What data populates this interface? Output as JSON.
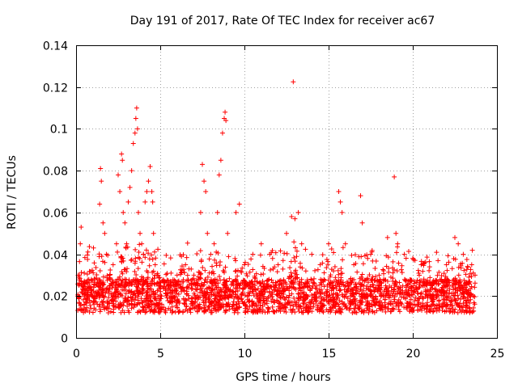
{
  "chart_data": {
    "type": "scatter",
    "title": "Day 191 of 2017, Rate Of TEC Index for receiver ac67",
    "xlabel": "GPS time / hours",
    "ylabel": "ROTI / TECUs",
    "xlim": [
      0,
      25
    ],
    "ylim": [
      0,
      0.14
    ],
    "xticks": [
      0,
      5,
      10,
      15,
      20,
      25
    ],
    "xtick_labels": [
      "0",
      "5",
      "10",
      "15",
      "20",
      "25"
    ],
    "yticks": [
      0,
      0.02,
      0.04,
      0.06,
      0.08,
      0.1,
      0.12,
      0.14
    ],
    "ytick_labels": [
      "0",
      "0.02",
      "0.04",
      "0.06",
      "0.08",
      "0.1",
      "0.12",
      "0.14"
    ],
    "grid": true,
    "marker": "+",
    "color": "#ff0000",
    "series": [
      {
        "name": "ROTI",
        "x": [
          0.1,
          0.2,
          0.25,
          0.3,
          0.35,
          0.5,
          0.8,
          1.0,
          1.2,
          1.4,
          1.45,
          1.5,
          1.6,
          1.7,
          1.8,
          2.0,
          2.2,
          2.4,
          2.5,
          2.6,
          2.7,
          2.75,
          2.8,
          2.9,
          3.0,
          3.1,
          3.2,
          3.3,
          3.4,
          3.5,
          3.55,
          3.6,
          3.65,
          3.7,
          3.8,
          3.9,
          4.0,
          4.1,
          4.2,
          4.3,
          4.4,
          4.5,
          4.55,
          4.6,
          4.7,
          4.8,
          5.0,
          5.5,
          6.0,
          6.5,
          7.0,
          7.4,
          7.5,
          7.6,
          7.7,
          7.8,
          8.0,
          8.2,
          8.4,
          8.5,
          8.6,
          8.7,
          8.8,
          8.85,
          8.9,
          9.0,
          9.5,
          9.7,
          10.0,
          10.5,
          11.0,
          11.5,
          12.0,
          12.5,
          12.8,
          12.9,
          13.0,
          13.2,
          13.4,
          14.0,
          14.5,
          15.0,
          15.6,
          15.7,
          15.8,
          16.0,
          16.5,
          16.9,
          17.0,
          17.5,
          18.0,
          18.5,
          18.9,
          19.0,
          19.1,
          19.5,
          20.0,
          20.5,
          21.0,
          21.5,
          22.0,
          22.5,
          22.7,
          23.0,
          23.5,
          23.7
        ],
        "y": [
          0.02,
          0.03,
          0.045,
          0.053,
          0.025,
          0.02,
          0.018,
          0.02,
          0.022,
          0.064,
          0.081,
          0.075,
          0.055,
          0.05,
          0.04,
          0.03,
          0.035,
          0.045,
          0.078,
          0.07,
          0.088,
          0.085,
          0.06,
          0.055,
          0.045,
          0.065,
          0.072,
          0.08,
          0.093,
          0.098,
          0.105,
          0.11,
          0.1,
          0.06,
          0.05,
          0.045,
          0.04,
          0.065,
          0.07,
          0.075,
          0.082,
          0.07,
          0.065,
          0.05,
          0.035,
          0.03,
          0.025,
          0.025,
          0.03,
          0.035,
          0.03,
          0.06,
          0.083,
          0.075,
          0.07,
          0.05,
          0.04,
          0.045,
          0.06,
          0.078,
          0.085,
          0.098,
          0.105,
          0.108,
          0.104,
          0.05,
          0.06,
          0.064,
          0.035,
          0.04,
          0.045,
          0.04,
          0.035,
          0.05,
          0.058,
          0.1225,
          0.057,
          0.06,
          0.045,
          0.04,
          0.035,
          0.045,
          0.07,
          0.065,
          0.06,
          0.045,
          0.035,
          0.068,
          0.055,
          0.04,
          0.03,
          0.048,
          0.077,
          0.05,
          0.045,
          0.04,
          0.038,
          0.035,
          0.034,
          0.037,
          0.035,
          0.048,
          0.045,
          0.04,
          0.035,
          0.03
        ]
      }
    ]
  }
}
